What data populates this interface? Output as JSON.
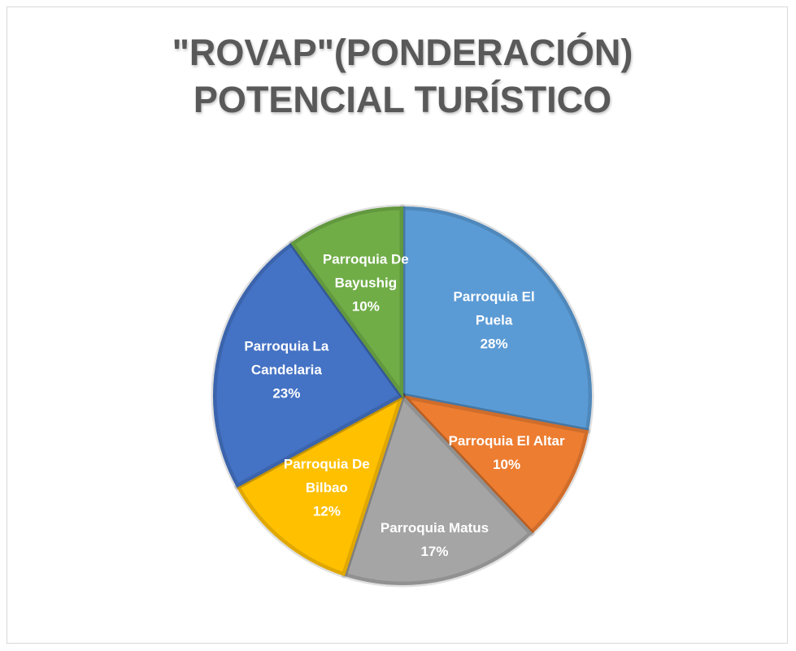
{
  "chart_data": {
    "type": "pie",
    "title": "\"ROVAP\"(PONDERACIÓN) POTENCIAL TURÍSTICO",
    "categories": [
      "Parroquia El Puela",
      "Parroquia El Altar",
      "Parroquia Matus",
      "Parroquia De Bilbao",
      "Parroquia La Candelaria",
      "Parroquia De Bayushig"
    ],
    "values": [
      28,
      10,
      17,
      12,
      23,
      10
    ],
    "value_labels": [
      "28%",
      "10%",
      "17%",
      "12%",
      "23%",
      "10%"
    ],
    "colors": [
      "#5b9bd5",
      "#ed7d31",
      "#a5a5a5",
      "#ffc000",
      "#4472c4",
      "#70ad47"
    ]
  }
}
